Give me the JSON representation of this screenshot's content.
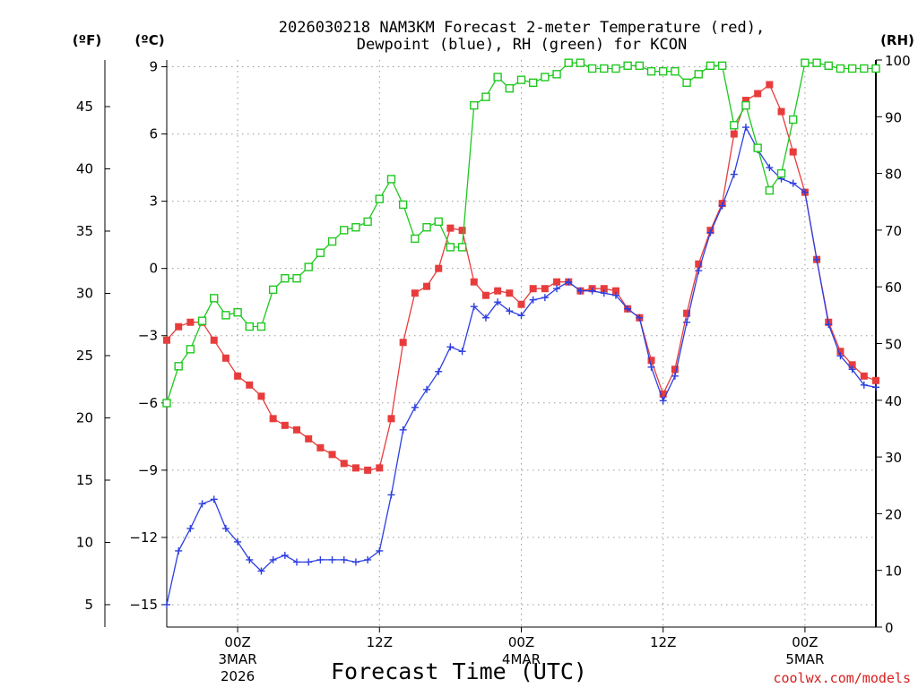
{
  "chart_data": {
    "type": "line",
    "title_line1": "2026030218 NAM3KM Forecast 2-meter Temperature (red),",
    "title_line2": "Dewpoint (blue), RH (green) for KCON",
    "xlabel": "Forecast Time (UTC)",
    "credit": "coolwx.com/models",
    "left_outer_unit": "(ºF)",
    "left_inner_unit": "(ºC)",
    "right_unit": "(RH)",
    "celsius_ticks": [
      9,
      6,
      3,
      0,
      -3,
      -6,
      -9,
      -12,
      -15
    ],
    "celsius_tick_labels": [
      "9",
      "6",
      "3",
      "0",
      "−3",
      "−6",
      "−9",
      "−12",
      "−15"
    ],
    "fahrenheit_ticks": [
      "45",
      "40",
      "35",
      "30",
      "25",
      "20",
      "15",
      "10",
      "5"
    ],
    "fahrenheit_values": [
      45,
      40,
      35,
      30,
      25,
      20,
      15,
      10,
      5
    ],
    "rh_ticks": [
      "100",
      "90",
      "80",
      "70",
      "60",
      "50",
      "40",
      "30",
      "20",
      "10",
      "0"
    ],
    "rh_values": [
      100,
      90,
      80,
      70,
      60,
      50,
      40,
      30,
      20,
      10,
      0
    ],
    "ylim_celsius": [
      -16.0,
      9.3
    ],
    "ylim_rh": [
      0,
      100
    ],
    "x_hours_range": [
      0,
      60
    ],
    "x_ticks": [
      {
        "hour": 6,
        "label": "00Z",
        "date": "3MAR",
        "year": "2026"
      },
      {
        "hour": 18,
        "label": "12Z",
        "date": "",
        "year": ""
      },
      {
        "hour": 30,
        "label": "00Z",
        "date": "4MAR",
        "year": ""
      },
      {
        "hour": 42,
        "label": "12Z",
        "date": "",
        "year": ""
      },
      {
        "hour": 54,
        "label": "00Z",
        "date": "5MAR",
        "year": ""
      }
    ],
    "series": [
      {
        "name": "Temperature",
        "color": "#e83c3c",
        "unit": "C",
        "marker": "filled-square",
        "values": [
          -3.2,
          -2.6,
          -2.4,
          -2.4,
          -3.2,
          -4.0,
          -4.8,
          -5.2,
          -5.7,
          -6.7,
          -7.0,
          -7.2,
          -7.6,
          -8.0,
          -8.3,
          -8.7,
          -8.9,
          -9.0,
          -8.9,
          -6.7,
          -3.3,
          -1.1,
          -0.8,
          0.0,
          1.8,
          1.7,
          -0.6,
          -1.2,
          -1.0,
          -1.1,
          -1.6,
          -0.9,
          -0.9,
          -0.6,
          -0.6,
          -1.0,
          -0.9,
          -0.9,
          -1.0,
          -1.8,
          -2.2,
          -4.1,
          -5.6,
          -4.5,
          -2.0,
          0.2,
          1.7,
          2.9,
          6.0,
          7.5,
          7.8,
          8.2,
          7.0,
          5.2,
          3.4,
          0.4,
          -2.4,
          -3.7,
          -4.3,
          -4.8,
          -5.0
        ],
        "markers": [
          0,
          1,
          2,
          3,
          4,
          5,
          6,
          7,
          8,
          9,
          10,
          11,
          12,
          13,
          14,
          15,
          16,
          17,
          18,
          19,
          20,
          21,
          22,
          23,
          24,
          25,
          26,
          27,
          28,
          29,
          30,
          31,
          32,
          33,
          34,
          35,
          36,
          37,
          38,
          39,
          40,
          41,
          42,
          43,
          44,
          45,
          46,
          47,
          48,
          49,
          50,
          51,
          52,
          53,
          54,
          55,
          56,
          57,
          58,
          59,
          60
        ]
      },
      {
        "name": "Dewpoint",
        "color": "#2c3fe0",
        "unit": "C",
        "marker": "plus",
        "values": [
          -15.0,
          -12.6,
          -11.6,
          -10.5,
          -10.3,
          -11.6,
          -12.2,
          -13.0,
          -13.5,
          -13.0,
          -12.8,
          -13.1,
          -13.1,
          -13.0,
          -13.0,
          -13.0,
          -13.1,
          -13.0,
          -12.6,
          -10.1,
          -7.2,
          -6.2,
          -5.4,
          -4.6,
          -3.5,
          -3.7,
          -1.7,
          -2.2,
          -1.5,
          -1.9,
          -2.1,
          -1.4,
          -1.3,
          -0.9,
          -0.6,
          -1.0,
          -1.0,
          -1.1,
          -1.2,
          -1.8,
          -2.2,
          -4.4,
          -5.9,
          -4.8,
          -2.4,
          -0.1,
          1.6,
          2.8,
          4.2,
          6.3,
          5.3,
          4.5,
          4.0,
          3.8,
          3.4,
          0.4,
          -2.5,
          -3.9,
          -4.5,
          -5.2,
          -5.3
        ],
        "markers": [
          0,
          1,
          2,
          3,
          4,
          5,
          6,
          7,
          8,
          9,
          10,
          11,
          12,
          13,
          14,
          15,
          16,
          17,
          18,
          19,
          20,
          21,
          22,
          23,
          24,
          25,
          26,
          27,
          28,
          29,
          30,
          31,
          32,
          33,
          34,
          35,
          36,
          37,
          38,
          39,
          40,
          41,
          42,
          43,
          44,
          45,
          46,
          47,
          48,
          49,
          50,
          51,
          52,
          53,
          54,
          55,
          56,
          57,
          58,
          59,
          60
        ]
      },
      {
        "name": "RH",
        "color": "#1ec81e",
        "unit": "%",
        "marker": "open-square",
        "values": [
          39.5,
          46,
          49,
          54,
          58,
          55,
          55.5,
          53,
          53,
          59.5,
          61.5,
          61.5,
          63.5,
          66,
          68,
          70,
          70.5,
          71.5,
          75.5,
          79,
          74.5,
          68.5,
          70.5,
          71.5,
          67,
          67,
          92,
          93.5,
          97,
          95,
          96.5,
          96,
          97,
          97.5,
          99.5,
          99.5,
          98.5,
          98.5,
          98.5,
          99,
          99,
          98,
          98,
          98,
          96,
          97.5,
          99,
          99,
          88.5,
          92,
          84.5,
          77,
          80,
          89.5,
          99.5,
          99.5,
          99,
          98.5,
          98.5,
          98.5,
          98.5
        ],
        "markers": [
          0,
          1,
          2,
          3,
          4,
          5,
          6,
          7,
          8,
          9,
          10,
          11,
          12,
          13,
          14,
          15,
          16,
          17,
          18,
          19,
          20,
          21,
          22,
          23,
          24,
          25,
          26,
          27,
          28,
          29,
          30,
          31,
          32,
          33,
          34,
          35,
          36,
          37,
          38,
          39,
          40,
          41,
          42,
          43,
          44,
          45,
          46,
          47,
          48,
          49,
          50,
          51,
          52,
          53,
          54,
          55,
          56,
          57,
          58,
          59,
          60
        ]
      }
    ]
  },
  "colors": {
    "grid": "#9a9a9a",
    "credit": "#d81e1e"
  }
}
